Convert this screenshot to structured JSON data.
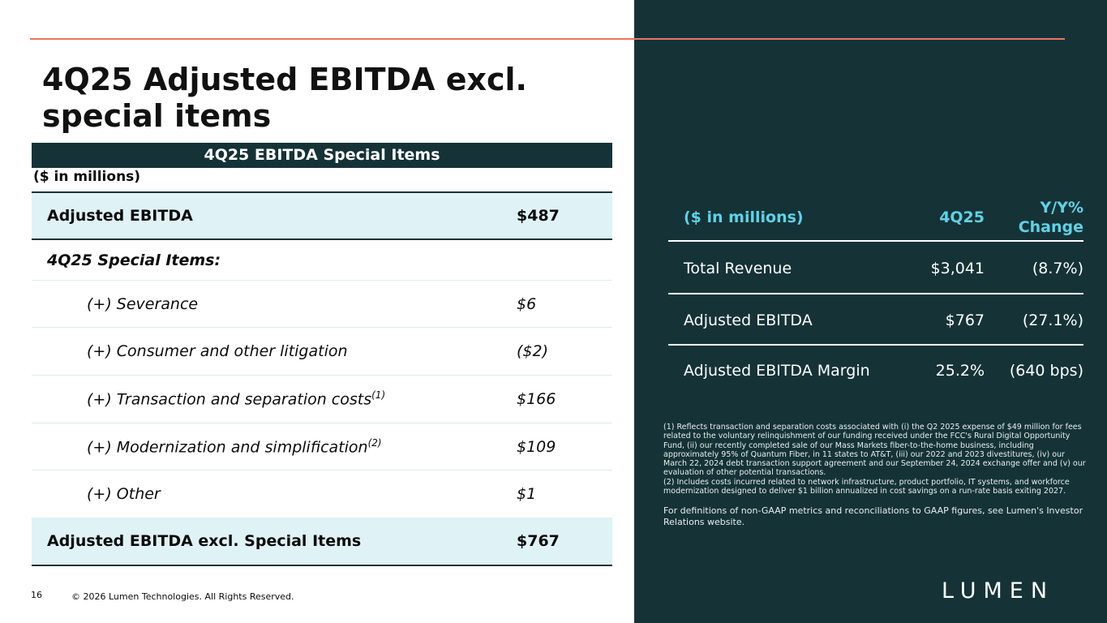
{
  "slide": {
    "title_line1": "4Q25 Adjusted EBITDA excl.",
    "title_line2": "special items",
    "page_number": "16",
    "copyright": "© 2026 Lumen Technologies. All Rights Reserved.",
    "logo_text": "LUMEN"
  },
  "special_items_table": {
    "header": "4Q25 EBITDA Special Items",
    "unit_label": "($ in millions)",
    "rows": [
      {
        "label": "Adjusted EBITDA",
        "sup": "",
        "value": "$487"
      },
      {
        "label": "4Q25 Special Items:",
        "sup": "",
        "value": ""
      },
      {
        "label": "(+) Severance",
        "sup": "",
        "value": "$6"
      },
      {
        "label": "(+) Consumer and other litigation",
        "sup": "",
        "value": "($2)"
      },
      {
        "label": "(+) Transaction and separation costs",
        "sup": "(1)",
        "value": "$166"
      },
      {
        "label": "(+) Modernization and simplification",
        "sup": "(2)",
        "value": "$109"
      },
      {
        "label": "(+) Other",
        "sup": "",
        "value": "$1"
      },
      {
        "label": "Adjusted EBITDA excl. Special Items",
        "sup": "",
        "value": "$767"
      }
    ]
  },
  "summary_table": {
    "col1_header": "($ in millions)",
    "col2_header": "4Q25",
    "col3_header_line1": "Y/Y%",
    "col3_header_line2": "Change",
    "rows": [
      {
        "label": "Total Revenue",
        "value": "$3,041",
        "change": "(8.7%)"
      },
      {
        "label": "Adjusted EBITDA",
        "value": "$767",
        "change": "(27.1%)"
      },
      {
        "label": "Adjusted EBITDA Margin",
        "value": "25.2%",
        "change": "(640 bps)"
      }
    ]
  },
  "footnotes": {
    "note1": "(1) Reflects transaction and separation costs associated with (i) the Q2 2025 expense of $49 million for fees related to the voluntary relinquishment of our funding received under the FCC's Rural Digital Opportunity Fund, (ii) our recently completed sale of our Mass Markets fiber-to-the-home business, including approximately 95% of Quantum Fiber, in 11 states to AT&T, (iii) our 2022 and 2023 divestitures, (iv) our March 22, 2024 debt transaction support agreement and our September 24, 2024 exchange offer and (v) our evaluation of other potential transactions.",
    "note2": "(2) Includes costs incurred related to network infrastructure, product portfolio, IT systems, and workforce modernization designed to deliver $1 billion annualized in cost savings on a run-rate basis exiting 2027.",
    "definitions": "For definitions of non-GAAP metrics and reconciliations to GAAP figures, see Lumen's Investor Relations website."
  },
  "colors": {
    "dark_panel": "#153337",
    "accent_line": "#ea7561",
    "highlight_row": "#dff2f5",
    "summary_header": "#5fd2e6"
  }
}
